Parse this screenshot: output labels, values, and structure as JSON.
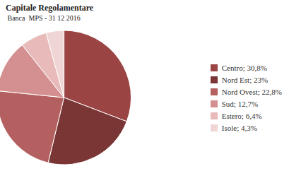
{
  "chart_data": {
    "type": "pie",
    "title": "Capitale Regolamentare",
    "subtitle": " Banca  MPS - 31 12 2016",
    "categories": [
      "Centro; 30,8%",
      "Nord Est; 23%",
      "Nord Ovest; 22,8%",
      "Sud; 12,7%",
      "Estero; 6,4%",
      "Isole; 4,3%"
    ],
    "values": [
      30.8,
      23.0,
      22.8,
      12.7,
      6.4,
      4.3
    ],
    "colors": [
      "#9B4444",
      "#7A3535",
      "#B56060",
      "#D49090",
      "#E8BABA",
      "#F0D5D5"
    ],
    "legend": "right"
  }
}
